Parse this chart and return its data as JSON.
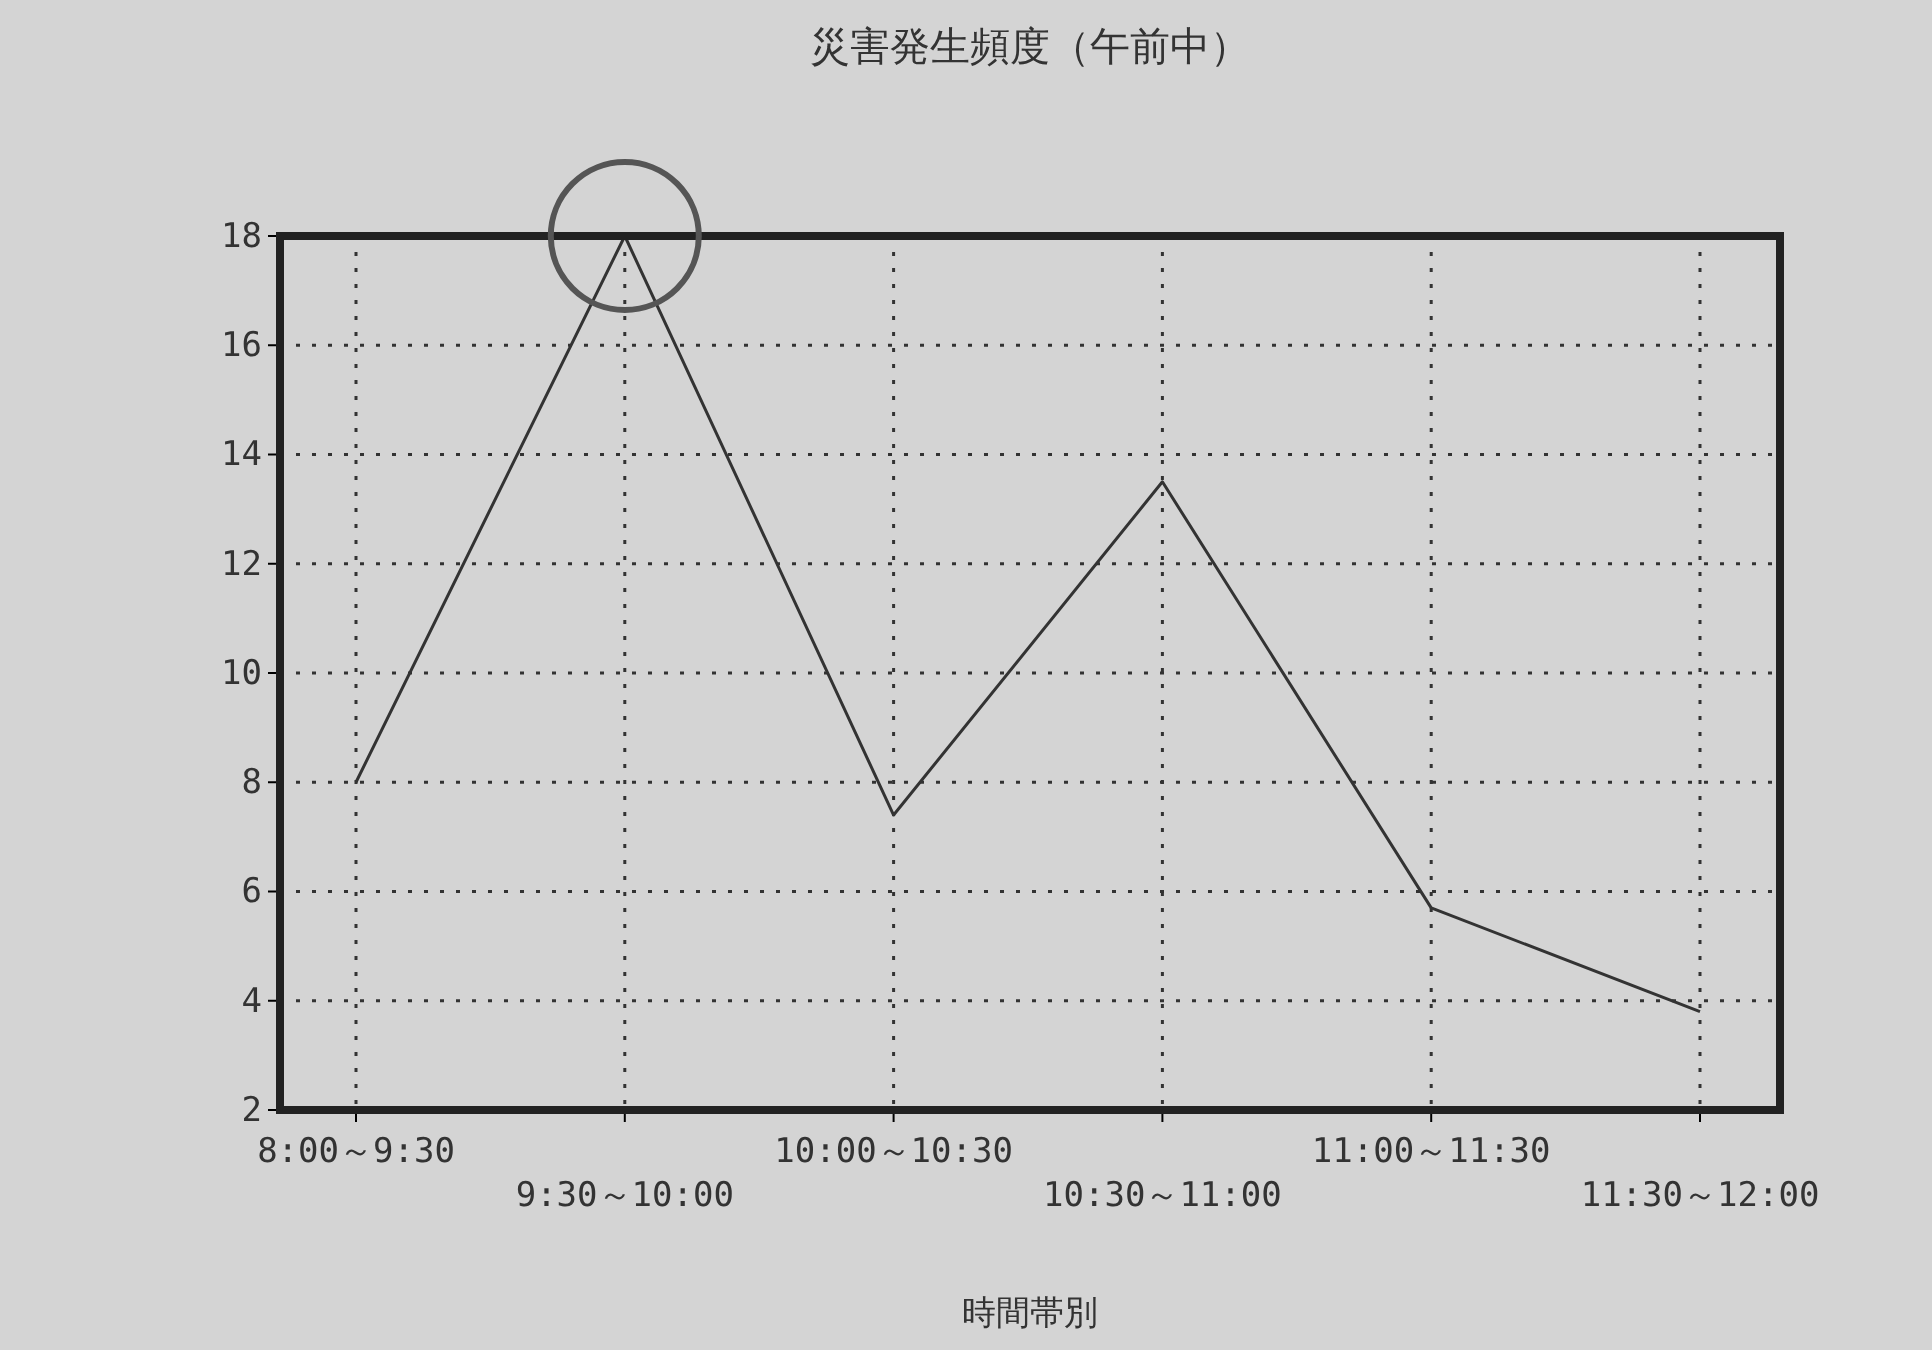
{
  "chart_data": {
    "type": "line",
    "title": "災害発生頻度（午前中）",
    "xlabel": "時間帯別",
    "categories": [
      "8:00～9:30",
      "9:30～10:00",
      "10:00～10:30",
      "10:30～11:00",
      "11:00～11:30",
      "11:30～12:00"
    ],
    "series": [
      {
        "color": "#333333",
        "values": [
          8,
          18,
          7.4,
          13.5,
          5.7,
          3.8
        ]
      }
    ],
    "ylim": [
      2,
      18
    ],
    "yticks": [
      2,
      4,
      6,
      8,
      10,
      12,
      14,
      16,
      18
    ],
    "grid": true,
    "line_style": "solid",
    "marker": "none"
  }
}
